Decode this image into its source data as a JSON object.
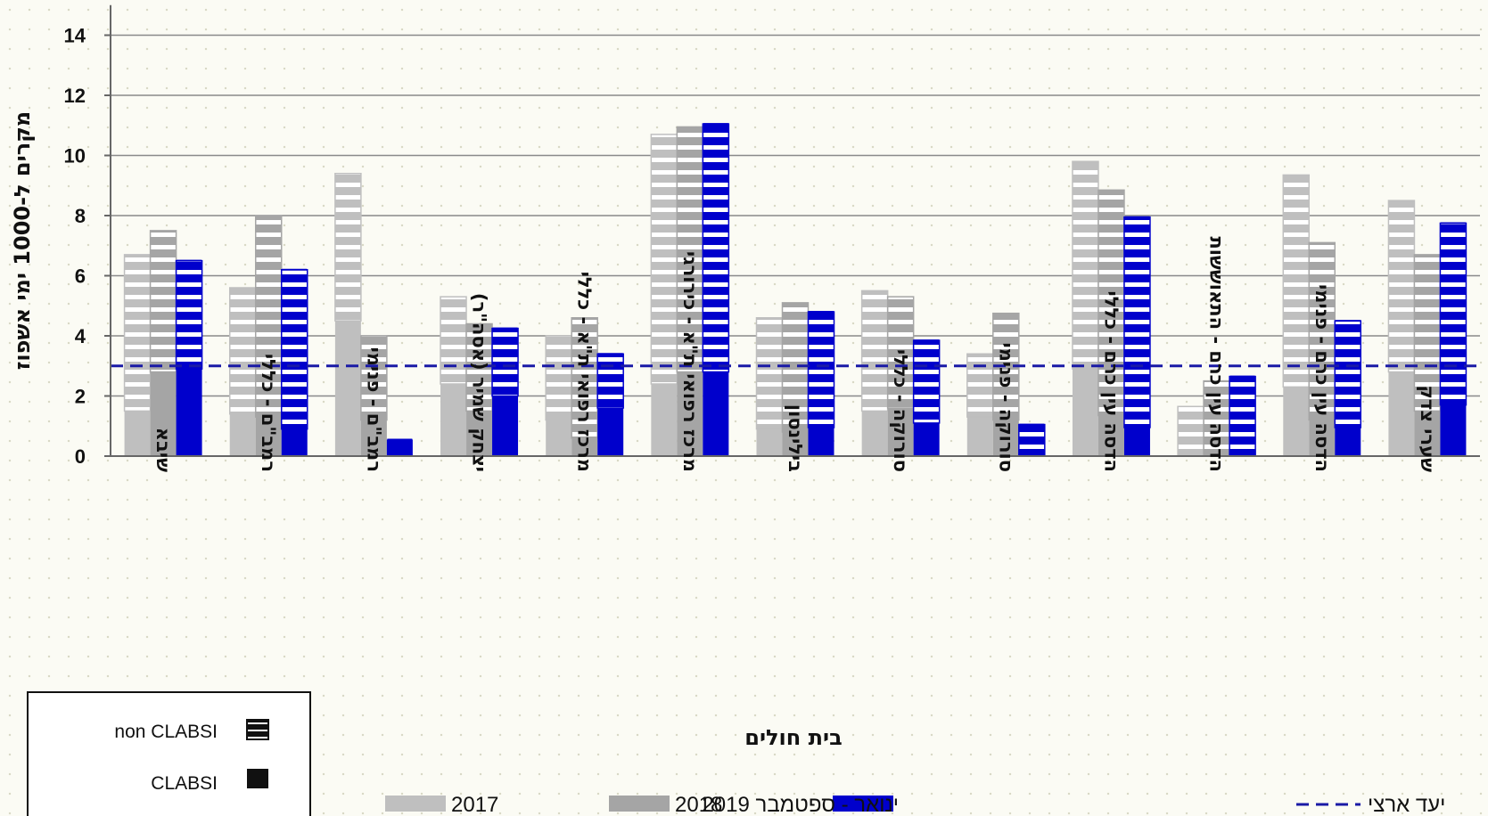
{
  "chart_data": {
    "type": "bar",
    "xlabel": "בית חולים",
    "ylabel": "מקרים ל-1000 ימי אשפוז",
    "ylim": [
      0,
      15
    ],
    "yticks": [
      0,
      2,
      4,
      6,
      8,
      10,
      12,
      14
    ],
    "grid": "horizontal",
    "categories": [
      "שיבא",
      "רמב\"ם - כללי",
      "רמב\"ם - פנימי",
      "יצחק שמיר (אסה\"ר)",
      "מרכז רפואי ת\"א - כללי",
      "מרכז רפואי ת\"א - כירורגי",
      "בילינסון",
      "סורוקה - כללי",
      "סורוקה - פנימי",
      "הדסה עין כרם - כללי",
      "הדסה עין כרם - התאוששות",
      "הדסה עין כרם - פנימי",
      "שערי צדק"
    ],
    "series": [
      {
        "name": "2017",
        "color": "#bfbfbf",
        "total": [
          6.7,
          5.6,
          9.4,
          5.3,
          4.0,
          10.7,
          4.6,
          5.5,
          3.4,
          9.8,
          1.65,
          9.35,
          8.5
        ],
        "clabsi": [
          1.5,
          1.4,
          4.5,
          2.4,
          1.2,
          2.4,
          0.9,
          1.5,
          1.3,
          2.9,
          0.0,
          2.3,
          2.8
        ]
      },
      {
        "name": "2018",
        "color": "#a5a5a5",
        "total": [
          7.5,
          8.0,
          4.0,
          4.4,
          4.6,
          10.95,
          5.1,
          5.3,
          4.75,
          8.85,
          2.5,
          7.1,
          6.7
        ],
        "clabsi": [
          2.8,
          1.3,
          1.2,
          1.5,
          0.6,
          2.8,
          0.8,
          1.6,
          1.2,
          1.35,
          0.0,
          1.2,
          1.5
        ]
      },
      {
        "name": "ינואר - ספטמבר 2019",
        "color": "#0000cc",
        "total": [
          6.5,
          6.2,
          0.55,
          4.25,
          3.4,
          11.05,
          4.8,
          3.85,
          1.05,
          7.95,
          2.65,
          4.5,
          7.75
        ],
        "clabsi": [
          2.9,
          0.9,
          0.55,
          2.0,
          1.6,
          2.8,
          0.95,
          1.1,
          0.0,
          0.95,
          0.0,
          0.95,
          1.7
        ]
      }
    ],
    "target": {
      "name": "יעד ארצי",
      "value": 3.0,
      "color": "#1a1aa6"
    },
    "legend": {
      "position": "bottom",
      "items": [
        "2017",
        "2018",
        "ינואר - ספטמבר 2019",
        "יעד ארצי"
      ]
    },
    "pattern_legend": {
      "position": "bottom-left",
      "items": [
        "non CLABSI",
        "CLABSI"
      ]
    }
  }
}
